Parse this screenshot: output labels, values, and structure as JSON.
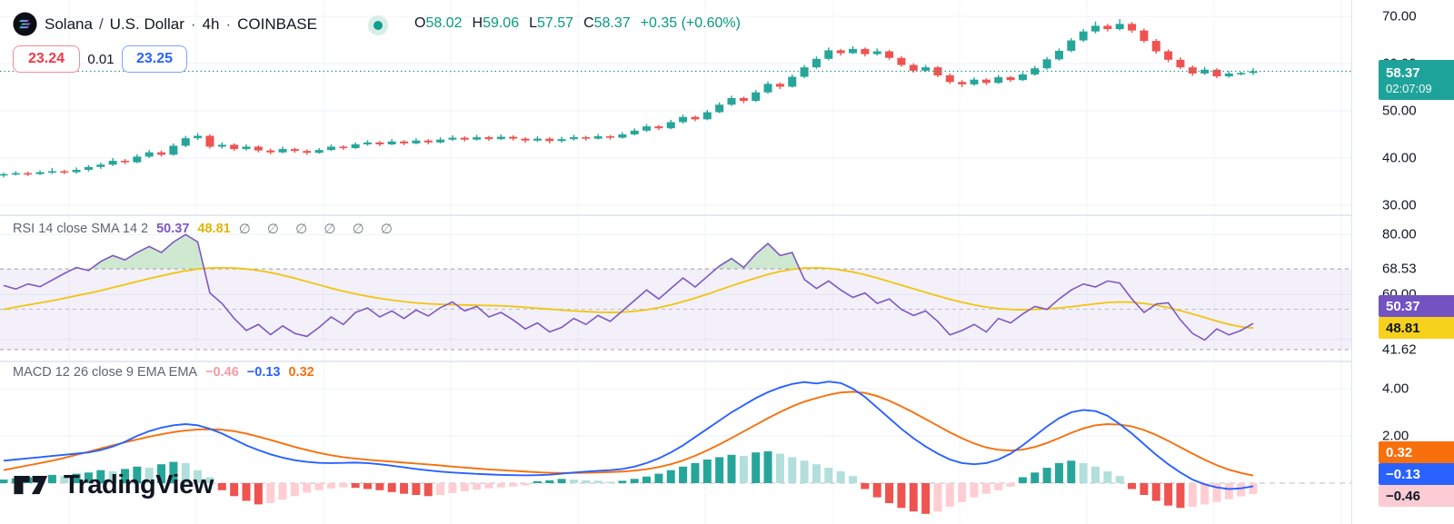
{
  "header": {
    "symbol": "Solana",
    "sep_slash": "/",
    "market": "U.S. Dollar",
    "sep_dot1": "·",
    "interval": "4h",
    "sep_dot2": "·",
    "exchange": "COINBASE",
    "ohlc": {
      "o_label": "O",
      "o": "58.02",
      "h_label": "H",
      "h": "59.06",
      "l_label": "L",
      "l": "57.57",
      "c_label": "C",
      "c": "58.37",
      "change": "+0.35 (+0.60%)"
    }
  },
  "order_panel": {
    "sell": "23.24",
    "spread": "0.01",
    "buy": "23.25"
  },
  "price_axis": {
    "ticks": [
      {
        "v": 70,
        "label": "70.00"
      },
      {
        "v": 60,
        "label": "60.00"
      },
      {
        "v": 50,
        "label": "50.00"
      },
      {
        "v": 40,
        "label": "40.00"
      },
      {
        "v": 30,
        "label": "30.00"
      }
    ],
    "badge": {
      "price": "58.37",
      "countdown": "02:07:09"
    }
  },
  "rsi": {
    "legend": "RSI 14 close SMA 14 2",
    "value": "50.37",
    "sma_value": "48.81",
    "empties": "∅ ∅ ∅ ∅ ∅ ∅",
    "axis_ticks": [
      {
        "v": 80,
        "label": "80.00"
      },
      {
        "v": 68.53,
        "label": "68.53"
      },
      {
        "v": 60,
        "label": "60.00"
      },
      {
        "v": 41.62,
        "label": "41.62"
      }
    ],
    "badge_rsi": "50.37",
    "badge_sma": "48.81"
  },
  "macd": {
    "legend": "MACD 12 26 close 9 EMA EMA",
    "hist_value": "−0.46",
    "macd_value": "−0.13",
    "signal_value": "0.32",
    "axis_ticks": [
      {
        "v": 4,
        "label": "4.00"
      },
      {
        "v": 2,
        "label": "2.00"
      }
    ],
    "badge_signal": "0.32",
    "badge_macd": "−0.13",
    "badge_hist": "−0.46"
  },
  "watermark": {
    "text": "TradingView"
  },
  "colors": {
    "up": "#26a69a",
    "down": "#ef5350",
    "price_line": "#2a9d8f",
    "rsi_line": "#7e57c2",
    "sma_line": "#f2c40e",
    "rsi_band_fill": "rgba(126,87,194,0.09)",
    "rsi_over_fill": "rgba(76,175,80,0.27)",
    "macd_line": "#2962ff",
    "signal_line": "#f7700d",
    "hist_pos_strong": "#26a69a",
    "hist_pos_weak": "#b2dfdb",
    "hist_neg_strong": "#ef5350",
    "hist_neg_weak": "#ffcdd2",
    "grid": "#eef1f8",
    "vgrid": "#f2f4f9",
    "dash_band": "#9b9faa",
    "dash_mid": "#b9bdc8",
    "dash_zero": "#cfd3dd"
  },
  "chart_data": {
    "type": "candlestick+indicators",
    "title": "Solana / U.S. Dollar · 4h · COINBASE",
    "panels": [
      "price",
      "RSI",
      "MACD"
    ],
    "price_range": [
      30,
      70
    ],
    "rsi_range": [
      38,
      85
    ],
    "macd_range": [
      -1.7,
      4.6
    ],
    "last_price": 58.37,
    "rsi_bands": {
      "upper": 68.53,
      "middle": 55.08,
      "lower": 41.62
    },
    "candles": [
      [
        36.4,
        36.9,
        35.9,
        36.6
      ],
      [
        36.6,
        37.2,
        36.3,
        36.8
      ],
      [
        36.8,
        37.1,
        36.2,
        36.6
      ],
      [
        36.6,
        37.4,
        36.4,
        37.0
      ],
      [
        37.0,
        37.9,
        36.6,
        37.2
      ],
      [
        37.2,
        37.5,
        36.6,
        37.0
      ],
      [
        37.0,
        38.0,
        36.7,
        37.5
      ],
      [
        37.5,
        38.5,
        37.1,
        38.1
      ],
      [
        38.1,
        39.0,
        37.7,
        38.6
      ],
      [
        38.6,
        40.0,
        38.3,
        39.4
      ],
      [
        39.4,
        39.8,
        38.7,
        39.1
      ],
      [
        39.1,
        40.8,
        38.9,
        40.3
      ],
      [
        40.3,
        41.7,
        40.0,
        41.2
      ],
      [
        41.2,
        41.6,
        40.3,
        40.7
      ],
      [
        40.7,
        43.1,
        40.5,
        42.6
      ],
      [
        42.6,
        44.7,
        42.3,
        44.2
      ],
      [
        44.2,
        45.3,
        43.8,
        44.7
      ],
      [
        44.7,
        45.0,
        42.0,
        42.4
      ],
      [
        42.4,
        43.3,
        42.0,
        42.8
      ],
      [
        42.8,
        43.1,
        41.5,
        41.9
      ],
      [
        41.9,
        42.9,
        41.6,
        42.4
      ],
      [
        42.4,
        42.7,
        41.2,
        41.6
      ],
      [
        41.6,
        42.0,
        40.8,
        41.2
      ],
      [
        41.2,
        42.4,
        41.0,
        41.9
      ],
      [
        41.9,
        42.2,
        41.1,
        41.5
      ],
      [
        41.5,
        41.8,
        40.7,
        41.1
      ],
      [
        41.1,
        42.1,
        40.9,
        41.7
      ],
      [
        41.7,
        42.9,
        41.5,
        42.4
      ],
      [
        42.4,
        42.7,
        41.7,
        42.1
      ],
      [
        42.1,
        43.3,
        41.9,
        42.9
      ],
      [
        42.9,
        43.8,
        42.6,
        43.3
      ],
      [
        43.3,
        43.6,
        42.5,
        42.9
      ],
      [
        42.9,
        44.0,
        42.7,
        43.5
      ],
      [
        43.5,
        43.8,
        42.7,
        43.1
      ],
      [
        43.1,
        44.2,
        42.9,
        43.7
      ],
      [
        43.7,
        44.0,
        42.9,
        43.3
      ],
      [
        43.3,
        44.4,
        43.1,
        43.9
      ],
      [
        43.9,
        44.8,
        43.6,
        44.3
      ],
      [
        44.3,
        44.6,
        43.5,
        43.9
      ],
      [
        43.9,
        44.9,
        43.7,
        44.4
      ],
      [
        44.4,
        44.7,
        43.6,
        44.0
      ],
      [
        44.0,
        45.0,
        43.8,
        44.5
      ],
      [
        44.5,
        44.8,
        43.7,
        44.1
      ],
      [
        44.1,
        44.4,
        43.2,
        43.7
      ],
      [
        43.7,
        44.6,
        43.4,
        44.1
      ],
      [
        44.1,
        44.4,
        43.1,
        43.6
      ],
      [
        43.6,
        44.5,
        43.3,
        44.0
      ],
      [
        44.0,
        44.9,
        43.7,
        44.4
      ],
      [
        44.4,
        44.7,
        43.7,
        44.1
      ],
      [
        44.1,
        45.1,
        43.9,
        44.6
      ],
      [
        44.6,
        44.9,
        43.9,
        44.3
      ],
      [
        44.3,
        45.5,
        44.1,
        45.0
      ],
      [
        45.0,
        46.3,
        44.8,
        45.8
      ],
      [
        45.8,
        47.2,
        45.5,
        46.7
      ],
      [
        46.7,
        47.0,
        45.9,
        46.3
      ],
      [
        46.3,
        48.1,
        46.1,
        47.6
      ],
      [
        47.6,
        49.2,
        47.3,
        48.7
      ],
      [
        48.7,
        49.0,
        47.8,
        48.2
      ],
      [
        48.2,
        50.2,
        48.0,
        49.7
      ],
      [
        49.7,
        51.8,
        49.5,
        51.3
      ],
      [
        51.3,
        53.2,
        51.0,
        52.7
      ],
      [
        52.7,
        53.0,
        51.6,
        52.1
      ],
      [
        52.1,
        54.4,
        51.9,
        53.9
      ],
      [
        53.9,
        56.2,
        53.6,
        55.7
      ],
      [
        55.7,
        56.0,
        54.6,
        55.1
      ],
      [
        55.1,
        57.7,
        54.9,
        57.2
      ],
      [
        57.2,
        59.7,
        56.9,
        59.2
      ],
      [
        59.2,
        61.5,
        58.9,
        61.0
      ],
      [
        61.0,
        63.4,
        60.7,
        62.8
      ],
      [
        62.8,
        63.1,
        61.7,
        62.2
      ],
      [
        62.2,
        63.7,
        62.0,
        63.1
      ],
      [
        63.1,
        63.4,
        61.5,
        62.0
      ],
      [
        62.0,
        63.2,
        61.7,
        62.6
      ],
      [
        62.6,
        62.9,
        60.8,
        61.2
      ],
      [
        61.2,
        61.6,
        59.3,
        59.7
      ],
      [
        59.7,
        60.1,
        58.1,
        58.5
      ],
      [
        58.5,
        59.7,
        58.2,
        59.2
      ],
      [
        59.2,
        59.5,
        57.1,
        57.5
      ],
      [
        57.5,
        57.9,
        55.7,
        56.1
      ],
      [
        56.1,
        56.5,
        55.0,
        55.6
      ],
      [
        55.6,
        57.1,
        55.3,
        56.6
      ],
      [
        56.6,
        56.9,
        55.5,
        55.9
      ],
      [
        55.9,
        57.6,
        55.7,
        57.1
      ],
      [
        57.1,
        57.4,
        56.1,
        56.5
      ],
      [
        56.5,
        58.2,
        56.3,
        57.7
      ],
      [
        57.7,
        59.5,
        57.4,
        59.0
      ],
      [
        59.0,
        61.4,
        58.7,
        60.9
      ],
      [
        60.9,
        63.2,
        60.6,
        62.7
      ],
      [
        62.7,
        65.4,
        62.4,
        64.9
      ],
      [
        64.9,
        67.3,
        64.6,
        66.8
      ],
      [
        66.8,
        68.9,
        66.4,
        68.0
      ],
      [
        68.0,
        68.4,
        66.8,
        67.3
      ],
      [
        67.3,
        69.4,
        67.0,
        68.4
      ],
      [
        68.4,
        68.8,
        66.5,
        67.0
      ],
      [
        67.0,
        67.4,
        64.4,
        64.8
      ],
      [
        64.8,
        65.2,
        62.1,
        62.6
      ],
      [
        62.6,
        63.0,
        60.3,
        60.8
      ],
      [
        60.8,
        61.3,
        58.8,
        59.2
      ],
      [
        59.2,
        59.6,
        57.4,
        57.9
      ],
      [
        57.9,
        59.3,
        57.6,
        58.7
      ],
      [
        58.7,
        59.0,
        56.9,
        57.3
      ],
      [
        57.3,
        58.4,
        57.0,
        57.9
      ],
      [
        57.9,
        58.3,
        57.5,
        58.02
      ],
      [
        58.02,
        59.06,
        57.57,
        58.37
      ]
    ],
    "rsi_values": [
      63.0,
      61.8,
      63.5,
      62.6,
      64.8,
      67.0,
      69.0,
      68.0,
      71.0,
      73.0,
      71.5,
      74.0,
      76.0,
      74.0,
      77.5,
      80.0,
      77.5,
      60.5,
      57.0,
      52.0,
      48.0,
      50.0,
      46.6,
      49.5,
      47.0,
      46.0,
      49.0,
      52.5,
      50.0,
      54.0,
      55.5,
      52.5,
      54.5,
      52.0,
      54.8,
      52.8,
      55.6,
      57.5,
      54.5,
      56.0,
      52.5,
      54.0,
      51.5,
      48.5,
      50.5,
      47.5,
      49.0,
      52.0,
      50.0,
      53.0,
      51.0,
      54.5,
      58.0,
      61.5,
      58.5,
      62.0,
      65.5,
      62.5,
      66.0,
      69.5,
      72.0,
      69.0,
      73.5,
      77.0,
      73.0,
      74.0,
      65.0,
      62.0,
      64.5,
      61.5,
      59.0,
      60.5,
      57.0,
      58.5,
      55.0,
      53.0,
      54.5,
      51.0,
      46.5,
      48.0,
      50.0,
      47.5,
      52.0,
      50.5,
      53.5,
      56.0,
      55.0,
      58.5,
      61.5,
      63.5,
      62.5,
      64.5,
      63.8,
      58.5,
      54.0,
      56.8,
      57.2,
      51.5,
      47.0,
      44.8,
      48.5,
      46.5,
      48.0,
      50.37
    ],
    "rsi_sma": [
      55.0,
      55.8,
      56.5,
      57.2,
      57.9,
      58.7,
      59.6,
      60.4,
      61.3,
      62.3,
      63.3,
      64.3,
      65.3,
      66.2,
      67.1,
      67.9,
      68.5,
      68.8,
      68.9,
      68.8,
      68.5,
      68.0,
      67.3,
      66.4,
      65.4,
      64.3,
      63.2,
      62.1,
      61.1,
      60.2,
      59.4,
      58.7,
      58.1,
      57.6,
      57.2,
      56.9,
      56.7,
      56.6,
      56.5,
      56.4,
      56.3,
      56.2,
      56.0,
      55.7,
      55.4,
      55.1,
      54.8,
      54.5,
      54.3,
      54.1,
      54.0,
      54.1,
      54.4,
      54.9,
      55.6,
      56.5,
      57.6,
      58.8,
      60.1,
      61.5,
      62.9,
      64.2,
      65.5,
      66.7,
      67.7,
      68.4,
      68.8,
      68.9,
      68.7,
      68.2,
      67.5,
      66.6,
      65.5,
      64.3,
      63.1,
      61.9,
      60.7,
      59.5,
      58.4,
      57.4,
      56.5,
      55.8,
      55.3,
      55.0,
      54.9,
      55.0,
      55.2,
      55.5,
      55.9,
      56.4,
      56.9,
      57.3,
      57.5,
      57.4,
      57.0,
      56.4,
      55.6,
      54.6,
      53.5,
      52.3,
      51.1,
      50.0,
      49.2,
      48.81
    ],
    "macd_line": [
      0.95,
      1.0,
      1.05,
      1.1,
      1.15,
      1.2,
      1.25,
      1.3,
      1.4,
      1.55,
      1.75,
      2.0,
      2.2,
      2.35,
      2.45,
      2.5,
      2.45,
      2.3,
      2.1,
      1.85,
      1.6,
      1.4,
      1.22,
      1.08,
      0.97,
      0.9,
      0.86,
      0.85,
      0.86,
      0.87,
      0.85,
      0.8,
      0.74,
      0.67,
      0.6,
      0.54,
      0.49,
      0.45,
      0.42,
      0.39,
      0.37,
      0.35,
      0.34,
      0.33,
      0.34,
      0.36,
      0.4,
      0.45,
      0.49,
      0.52,
      0.55,
      0.6,
      0.7,
      0.85,
      1.05,
      1.3,
      1.6,
      1.95,
      2.3,
      2.65,
      3.0,
      3.3,
      3.6,
      3.85,
      4.05,
      4.2,
      4.28,
      4.22,
      4.3,
      4.24,
      4.0,
      3.65,
      3.2,
      2.75,
      2.3,
      1.9,
      1.55,
      1.25,
      1.0,
      0.85,
      0.8,
      0.85,
      1.0,
      1.25,
      1.6,
      2.0,
      2.4,
      2.75,
      3.0,
      3.1,
      3.05,
      2.85,
      2.5,
      2.1,
      1.65,
      1.2,
      0.8,
      0.45,
      0.15,
      -0.05,
      -0.18,
      -0.25,
      -0.22,
      -0.13
    ],
    "signal_line": [
      0.55,
      0.65,
      0.75,
      0.85,
      0.95,
      1.07,
      1.2,
      1.33,
      1.47,
      1.6,
      1.73,
      1.85,
      1.97,
      2.07,
      2.16,
      2.23,
      2.27,
      2.28,
      2.26,
      2.2,
      2.1,
      1.97,
      1.83,
      1.68,
      1.53,
      1.4,
      1.28,
      1.18,
      1.1,
      1.04,
      0.99,
      0.95,
      0.91,
      0.87,
      0.83,
      0.79,
      0.75,
      0.7,
      0.66,
      0.62,
      0.58,
      0.55,
      0.52,
      0.49,
      0.46,
      0.44,
      0.43,
      0.43,
      0.44,
      0.45,
      0.47,
      0.49,
      0.53,
      0.59,
      0.68,
      0.8,
      0.96,
      1.16,
      1.39,
      1.64,
      1.91,
      2.19,
      2.47,
      2.75,
      3.01,
      3.25,
      3.45,
      3.6,
      3.74,
      3.84,
      3.87,
      3.82,
      3.69,
      3.49,
      3.25,
      2.99,
      2.71,
      2.43,
      2.15,
      1.9,
      1.68,
      1.51,
      1.41,
      1.38,
      1.42,
      1.53,
      1.7,
      1.91,
      2.13,
      2.32,
      2.45,
      2.5,
      2.48,
      2.4,
      2.25,
      2.04,
      1.79,
      1.52,
      1.25,
      0.99,
      0.76,
      0.57,
      0.43,
      0.32
    ],
    "histogram": [
      0.15,
      0.2,
      0.25,
      0.3,
      0.35,
      0.3,
      0.4,
      0.45,
      0.55,
      0.5,
      0.6,
      0.7,
      0.65,
      0.8,
      0.9,
      0.85,
      0.55,
      0.25,
      -0.3,
      -0.55,
      -0.75,
      -0.9,
      -0.85,
      -0.7,
      -0.55,
      -0.4,
      -0.3,
      -0.22,
      -0.18,
      -0.2,
      -0.25,
      -0.3,
      -0.38,
      -0.45,
      -0.5,
      -0.55,
      -0.5,
      -0.42,
      -0.35,
      -0.28,
      -0.22,
      -0.18,
      -0.14,
      -0.1,
      0.08,
      0.12,
      0.18,
      0.15,
      0.12,
      0.1,
      0.06,
      0.1,
      0.18,
      0.28,
      0.4,
      0.55,
      0.7,
      0.85,
      1.0,
      1.1,
      1.2,
      1.15,
      1.3,
      1.35,
      1.25,
      1.1,
      0.95,
      0.8,
      0.65,
      0.5,
      0.3,
      -0.25,
      -0.6,
      -0.85,
      -1.05,
      -1.2,
      -1.3,
      -1.2,
      -1.0,
      -0.8,
      -0.6,
      -0.45,
      -0.3,
      -0.15,
      0.25,
      0.45,
      0.65,
      0.85,
      0.95,
      0.85,
      0.7,
      0.5,
      0.3,
      -0.25,
      -0.5,
      -0.75,
      -0.95,
      -1.05,
      -1.0,
      -0.9,
      -0.8,
      -0.68,
      -0.56,
      -0.46
    ]
  }
}
